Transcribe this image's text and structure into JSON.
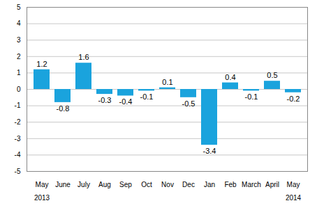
{
  "chart_data": {
    "type": "bar",
    "categories": [
      "May\n2013",
      "June",
      "July",
      "Aug",
      "Sep",
      "Oct",
      "Nov",
      "Dec",
      "Jan",
      "Feb",
      "March",
      "April",
      "May\n2014"
    ],
    "values": [
      1.2,
      -0.8,
      1.6,
      -0.3,
      -0.4,
      -0.1,
      0.1,
      -0.5,
      -3.4,
      0.4,
      -0.1,
      0.5,
      -0.2
    ],
    "color": "#1aa3dd",
    "ylim": [
      -5,
      5
    ],
    "yticks": [
      -5,
      -4,
      -3,
      -2,
      -1,
      0,
      1,
      2,
      3,
      4,
      5
    ],
    "grid": true,
    "data_labels": true
  }
}
